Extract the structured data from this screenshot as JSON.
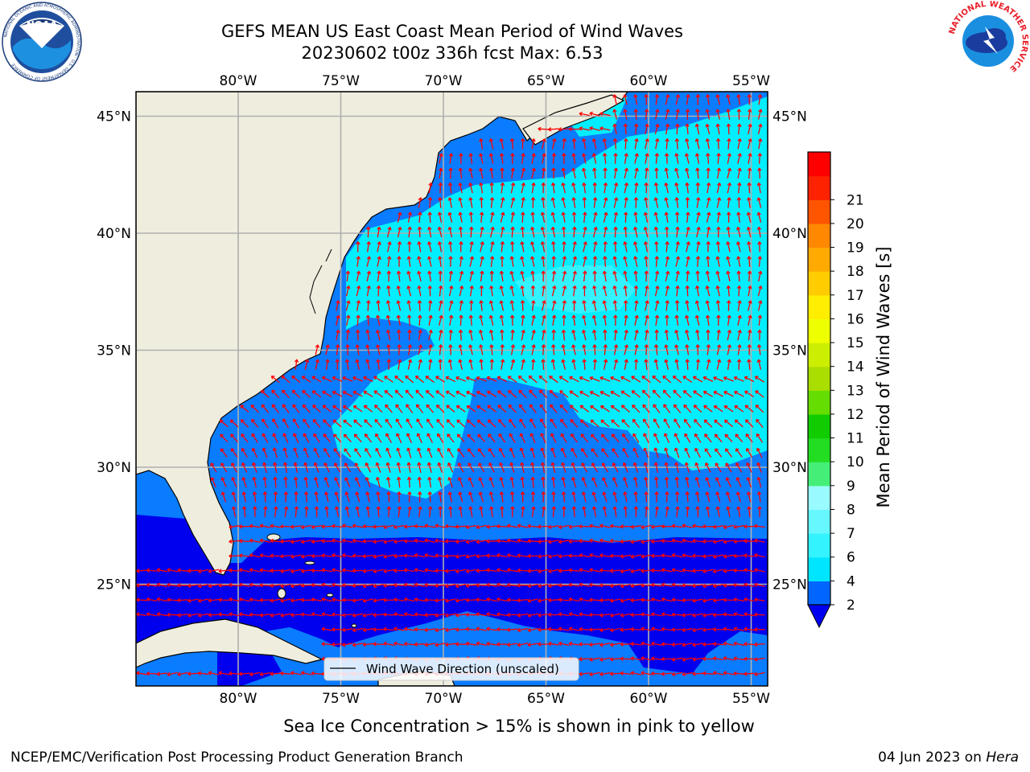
{
  "header": {
    "title_line1": "GEFS MEAN US East Coast Mean Period of Wind Waves",
    "title_line2": "20230602 t00z 336h fcst   Max: 6.53",
    "left_logo_text": "NOAA",
    "left_logo_ring_text": "NATIONAL OCEANIC AND ATMOSPHERIC ADMINISTRATION · U.S. DEPARTMENT OF COMMERCE",
    "right_logo_ring_text": "NATIONAL WEATHER SERVICE"
  },
  "map": {
    "lon_labels": [
      "80°W",
      "75°W",
      "70°W",
      "65°W",
      "60°W",
      "55°W"
    ],
    "lat_labels": [
      "45°N",
      "40°N",
      "35°N",
      "30°N",
      "25°N"
    ],
    "legend_label": "Wind Wave Direction (unscaled)",
    "arrow_color": "#ff0000",
    "land_color": "#efedde",
    "grid_color": "#b0b0b0"
  },
  "colorbar": {
    "label": "Mean Period of Wind Waves [s]",
    "tick_labels": [
      "2",
      "4",
      "6",
      "7",
      "8",
      "9",
      "10",
      "11",
      "12",
      "13",
      "14",
      "15",
      "16",
      "17",
      "18",
      "19",
      "20",
      "21"
    ],
    "colors": [
      "#0066ff",
      "#00e5ff",
      "#33f3ff",
      "#66f7ff",
      "#99fbff",
      "#44ee77",
      "#22dd22",
      "#11cc00",
      "#66dd00",
      "#aadd00",
      "#ccee00",
      "#eeff00",
      "#ffee00",
      "#ffcc00",
      "#ffaa00",
      "#ff8800",
      "#ff5500",
      "#ff2200",
      "#ff0000"
    ],
    "under_color": "#0000ee"
  },
  "footer": {
    "sea_ice_note": "Sea Ice Concentration > 15% is shown in pink to yellow",
    "branch": "NCEP/EMC/Verification Post Processing Product Generation Branch",
    "date": "04 Jun 2023 on",
    "machine": "Hera"
  }
}
